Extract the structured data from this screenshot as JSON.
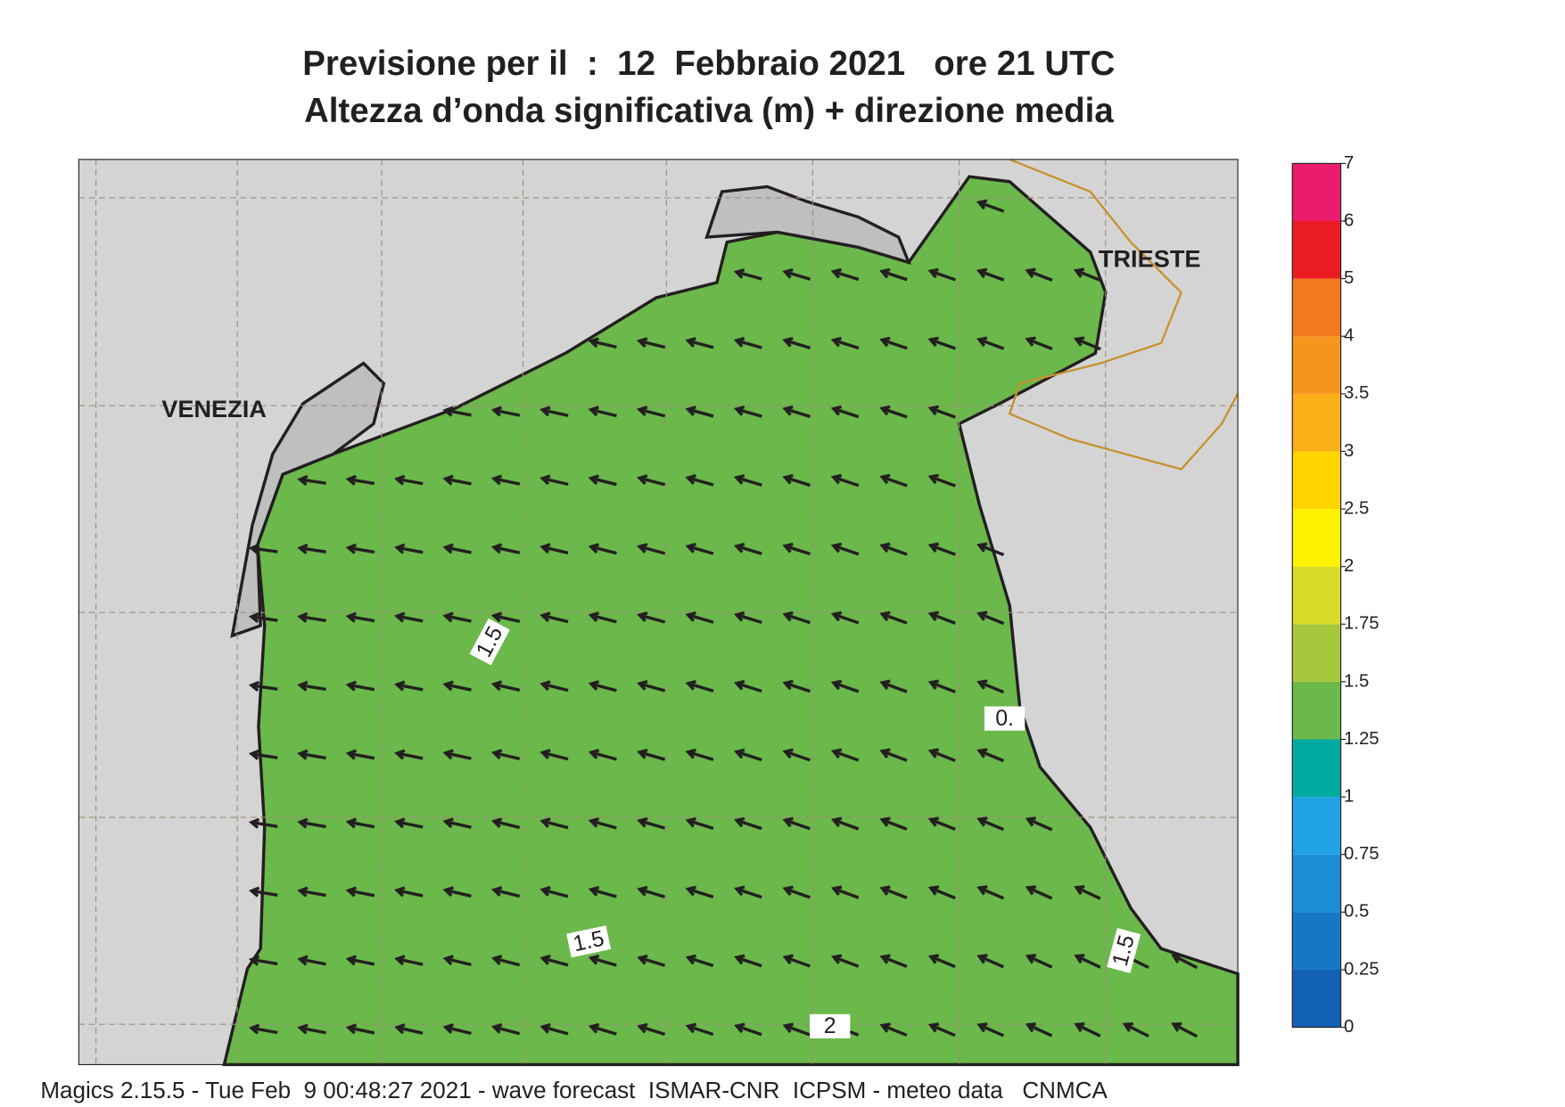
{
  "header": {
    "title": "Previsione per il  :  12  Febbraio 2021   ore 21 UTC",
    "subtitle": "Altezza d’onda significativa (m) + direzione media"
  },
  "map": {
    "places": [
      "VENEZIA",
      "TRIESTE"
    ],
    "contour_labels": [
      "1.5",
      "1.5",
      "1.5",
      "2",
      "0."
    ]
  },
  "legend": {
    "levels": [
      0,
      0.25,
      0.5,
      0.75,
      1,
      1.25,
      1.5,
      1.75,
      2,
      2.5,
      3,
      3.5,
      4,
      5,
      6,
      7
    ],
    "colors": [
      "#1261b4",
      "#1677c4",
      "#1b8cd6",
      "#21a2e2",
      "#00aa9f",
      "#6bb84b",
      "#a6c83c",
      "#d7dd2a",
      "#fff200",
      "#ffd400",
      "#fbb01a",
      "#f7941d",
      "#f47a20",
      "#ec1c24",
      "#ec1c6c"
    ]
  },
  "footer": "Magics 2.15.5 - Tue Feb  9 00:48:27 2021 - wave forecast  ISMAR-CNR  ICPSM - meteo data   CNMCA"
}
